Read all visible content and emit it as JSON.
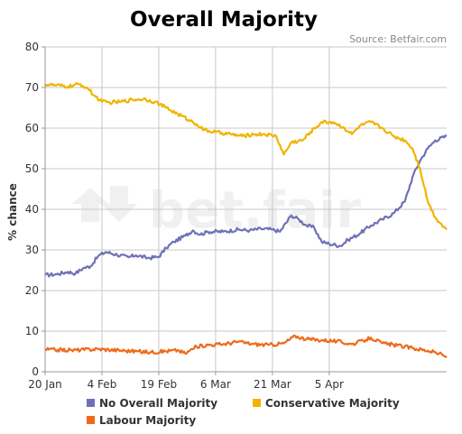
{
  "chart_data": {
    "type": "line",
    "title": "Overall Majority",
    "source": "Source: Betfair.com",
    "watermark": "bet.fair",
    "xlabel": "",
    "ylabel": "% chance",
    "ylim": [
      0,
      80
    ],
    "y_ticks": [
      0,
      10,
      20,
      30,
      40,
      50,
      60,
      70,
      80
    ],
    "x_ticks": [
      "20 Jan",
      "4 Feb",
      "19 Feb",
      "6 Mar",
      "21 Mar",
      "5 Apr"
    ],
    "xlim": [
      "2010-01-20",
      "2010-05-06"
    ],
    "grid": true,
    "legend_position": "bottom",
    "series": [
      {
        "name": "No Overall Majority",
        "color": "#7070b8",
        "points": [
          [
            "2010-01-20",
            23.8
          ],
          [
            "2010-01-23",
            24.0
          ],
          [
            "2010-01-26",
            24.6
          ],
          [
            "2010-01-28",
            24.2
          ],
          [
            "2010-01-30",
            25.5
          ],
          [
            "2010-02-01",
            26.0
          ],
          [
            "2010-02-03",
            28.5
          ],
          [
            "2010-02-05",
            29.5
          ],
          [
            "2010-02-08",
            28.8
          ],
          [
            "2010-02-11",
            28.2
          ],
          [
            "2010-02-13",
            28.7
          ],
          [
            "2010-02-16",
            28.0
          ],
          [
            "2010-02-19",
            28.3
          ],
          [
            "2010-02-21",
            30.5
          ],
          [
            "2010-02-23",
            32.0
          ],
          [
            "2010-02-26",
            33.5
          ],
          [
            "2010-02-28",
            34.8
          ],
          [
            "2010-03-02",
            33.8
          ],
          [
            "2010-03-04",
            34.5
          ],
          [
            "2010-03-08",
            34.5
          ],
          [
            "2010-03-12",
            35.0
          ],
          [
            "2010-03-15",
            34.8
          ],
          [
            "2010-03-18",
            35.2
          ],
          [
            "2010-03-21",
            35.0
          ],
          [
            "2010-03-23",
            34.5
          ],
          [
            "2010-03-26",
            38.5
          ],
          [
            "2010-03-28",
            37.5
          ],
          [
            "2010-03-30",
            36.0
          ],
          [
            "2010-04-01",
            35.5
          ],
          [
            "2010-04-03",
            32.0
          ],
          [
            "2010-04-05",
            31.5
          ],
          [
            "2010-04-08",
            31.0
          ],
          [
            "2010-04-10",
            32.5
          ],
          [
            "2010-04-13",
            34.0
          ],
          [
            "2010-04-16",
            36.0
          ],
          [
            "2010-04-19",
            37.5
          ],
          [
            "2010-04-22",
            39.0
          ],
          [
            "2010-04-25",
            42.0
          ],
          [
            "2010-04-27",
            48.0
          ],
          [
            "2010-04-29",
            52.0
          ],
          [
            "2010-05-01",
            55.0
          ],
          [
            "2010-05-03",
            57.0
          ],
          [
            "2010-05-06",
            58.0
          ]
        ]
      },
      {
        "name": "Conservative Majority",
        "color": "#f0b400",
        "points": [
          [
            "2010-01-20",
            70.8
          ],
          [
            "2010-01-23",
            70.5
          ],
          [
            "2010-01-26",
            70.2
          ],
          [
            "2010-01-29",
            70.8
          ],
          [
            "2010-01-31",
            70.0
          ],
          [
            "2010-02-02",
            68.0
          ],
          [
            "2010-02-04",
            66.5
          ],
          [
            "2010-02-06",
            66.3
          ],
          [
            "2010-02-09",
            66.5
          ],
          [
            "2010-02-12",
            67.0
          ],
          [
            "2010-02-15",
            67.2
          ],
          [
            "2010-02-18",
            66.5
          ],
          [
            "2010-02-21",
            65.0
          ],
          [
            "2010-02-24",
            63.5
          ],
          [
            "2010-02-27",
            62.0
          ],
          [
            "2010-03-01",
            61.0
          ],
          [
            "2010-03-03",
            59.5
          ],
          [
            "2010-03-06",
            59.0
          ],
          [
            "2010-03-10",
            58.5
          ],
          [
            "2010-03-13",
            58.0
          ],
          [
            "2010-03-16",
            58.5
          ],
          [
            "2010-03-19",
            58.5
          ],
          [
            "2010-03-22",
            58.0
          ],
          [
            "2010-03-24",
            53.5
          ],
          [
            "2010-03-26",
            56.5
          ],
          [
            "2010-03-29",
            57.0
          ],
          [
            "2010-03-31",
            59.0
          ],
          [
            "2010-04-03",
            61.5
          ],
          [
            "2010-04-06",
            61.5
          ],
          [
            "2010-04-09",
            60.0
          ],
          [
            "2010-04-11",
            58.5
          ],
          [
            "2010-04-13",
            60.5
          ],
          [
            "2010-04-16",
            61.5
          ],
          [
            "2010-04-19",
            60.0
          ],
          [
            "2010-04-22",
            58.0
          ],
          [
            "2010-04-25",
            57.0
          ],
          [
            "2010-04-27",
            55.0
          ],
          [
            "2010-04-29",
            50.0
          ],
          [
            "2010-05-01",
            42.0
          ],
          [
            "2010-05-03",
            38.0
          ],
          [
            "2010-05-06",
            35.0
          ]
        ]
      },
      {
        "name": "Labour Majority",
        "color": "#ee6a1a",
        "points": [
          [
            "2010-01-20",
            5.5
          ],
          [
            "2010-01-27",
            5.3
          ],
          [
            "2010-02-03",
            5.6
          ],
          [
            "2010-02-10",
            5.2
          ],
          [
            "2010-02-17",
            4.8
          ],
          [
            "2010-02-24",
            5.3
          ],
          [
            "2010-02-26",
            4.5
          ],
          [
            "2010-03-01",
            6.2
          ],
          [
            "2010-03-04",
            6.6
          ],
          [
            "2010-03-08",
            6.8
          ],
          [
            "2010-03-12",
            7.4
          ],
          [
            "2010-03-16",
            6.8
          ],
          [
            "2010-03-20",
            6.6
          ],
          [
            "2010-03-24",
            7.0
          ],
          [
            "2010-03-27",
            8.8
          ],
          [
            "2010-03-30",
            8.0
          ],
          [
            "2010-04-03",
            7.8
          ],
          [
            "2010-04-07",
            7.5
          ],
          [
            "2010-04-11",
            6.8
          ],
          [
            "2010-04-14",
            7.6
          ],
          [
            "2010-04-16",
            8.4
          ],
          [
            "2010-04-19",
            7.0
          ],
          [
            "2010-04-23",
            6.5
          ],
          [
            "2010-04-27",
            5.8
          ],
          [
            "2010-05-01",
            5.2
          ],
          [
            "2010-05-04",
            4.5
          ],
          [
            "2010-05-06",
            3.5
          ]
        ]
      }
    ]
  }
}
